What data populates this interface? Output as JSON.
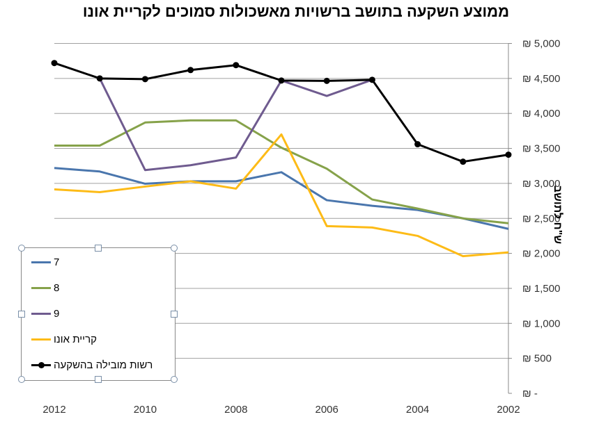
{
  "chart_data": {
    "type": "line",
    "title": "ממוצע השקעה בתושב ברשויות מאשכולות סמוכים לקריית אונו",
    "xlabel": "",
    "ylabel": "ש\"ח לתושב",
    "x": [
      2012,
      2011,
      2010,
      2009,
      2008,
      2007,
      2006,
      2005,
      2004,
      2003,
      2002
    ],
    "x_tick_labels": [
      "2012",
      "2010",
      "2008",
      "2006",
      "2004",
      "2002"
    ],
    "x_reversed": true,
    "ylim": [
      0,
      5000
    ],
    "y_tick_labels": [
      "₪ -",
      "₪ 500",
      "₪ 1,000",
      "₪ 1,500",
      "₪ 2,000",
      "₪ 2,500",
      "₪ 3,000",
      "₪ 3,500",
      "₪ 4,000",
      "₪ 4,500",
      "₪ 5,000"
    ],
    "y_axis_side": "right",
    "grid": true,
    "legend_position": "bottom-left",
    "series": [
      {
        "name": "7",
        "color": "#4a76ad",
        "values": [
          3220,
          3170,
          2995,
          3030,
          3030,
          3160,
          2760,
          2680,
          2620,
          2500,
          2350
        ]
      },
      {
        "name": "8",
        "color": "#86a24a",
        "values": [
          3540,
          3540,
          3870,
          3900,
          3900,
          3510,
          3210,
          2770,
          2640,
          2500,
          2430
        ]
      },
      {
        "name": "9",
        "color": "#6f5b8f",
        "values": [
          null,
          4500,
          3190,
          3260,
          3370,
          4470,
          4250,
          4480,
          null,
          null,
          null
        ]
      },
      {
        "name": "קריית אונו",
        "color": "#fdbb17",
        "values": [
          2915,
          2875,
          2955,
          3030,
          2925,
          3700,
          2390,
          2370,
          2250,
          1960,
          2015
        ]
      },
      {
        "name": "רשות מובילה בהשקעה",
        "color": "#000000",
        "marker": "circle",
        "values": [
          4720,
          4500,
          4490,
          4620,
          4690,
          4470,
          4465,
          4480,
          3560,
          3310,
          3410
        ]
      }
    ]
  }
}
